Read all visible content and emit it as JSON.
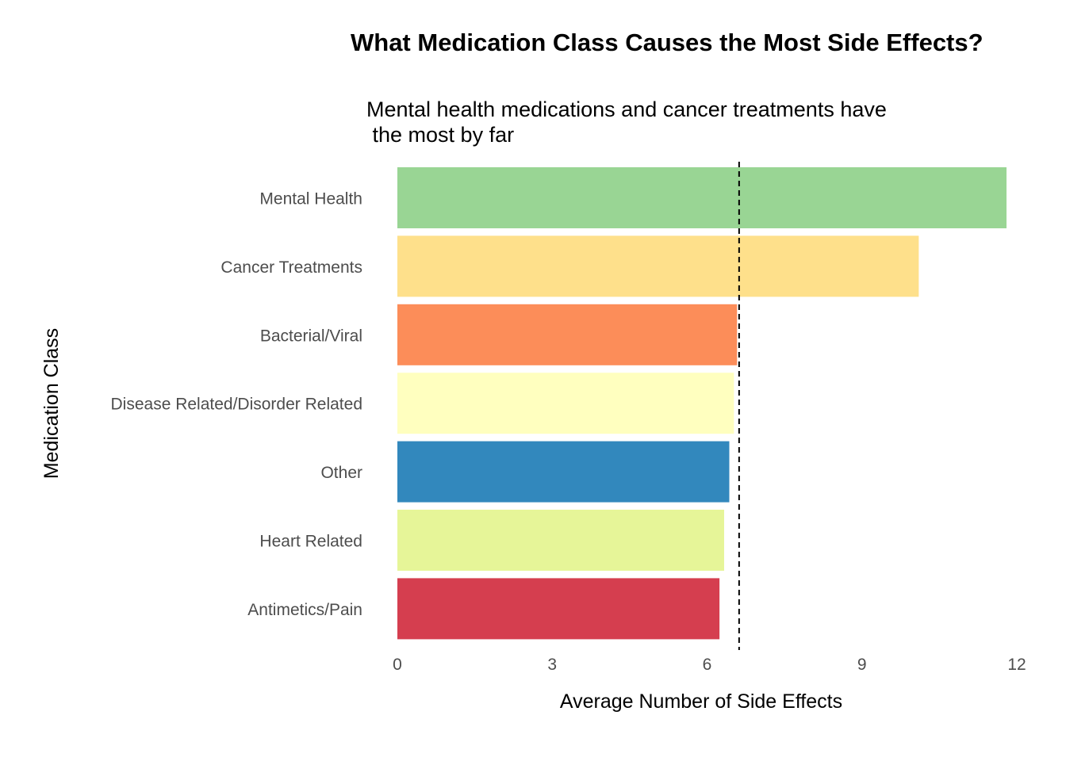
{
  "chart_data": {
    "type": "bar",
    "orientation": "horizontal",
    "title": "What Medication Class Causes the Most Side Effects?",
    "subtitle": "Mental health medications and cancer treatments have\n the most by far",
    "xlabel": "Average Number of Side Effects",
    "ylabel": "Medication Class",
    "categories": [
      "Mental Health",
      "Cancer Treatments",
      "Bacterial/Viral",
      "Disease Related/Disorder Related",
      "Other",
      "Heart Related",
      "Antimetics/Pain"
    ],
    "values": [
      11.8,
      10.1,
      6.58,
      6.52,
      6.43,
      6.33,
      6.24
    ],
    "colors": [
      "#99d594",
      "#fee08b",
      "#fc8d59",
      "#ffffbf",
      "#3288bd",
      "#e6f598",
      "#d53e4f"
    ],
    "reference_line": {
      "value": 6.62,
      "style": "dashed"
    },
    "xlim": [
      0,
      12
    ],
    "xticks": [
      "0",
      "3",
      "6",
      "9",
      "12"
    ],
    "grid": false,
    "legend": "none"
  }
}
